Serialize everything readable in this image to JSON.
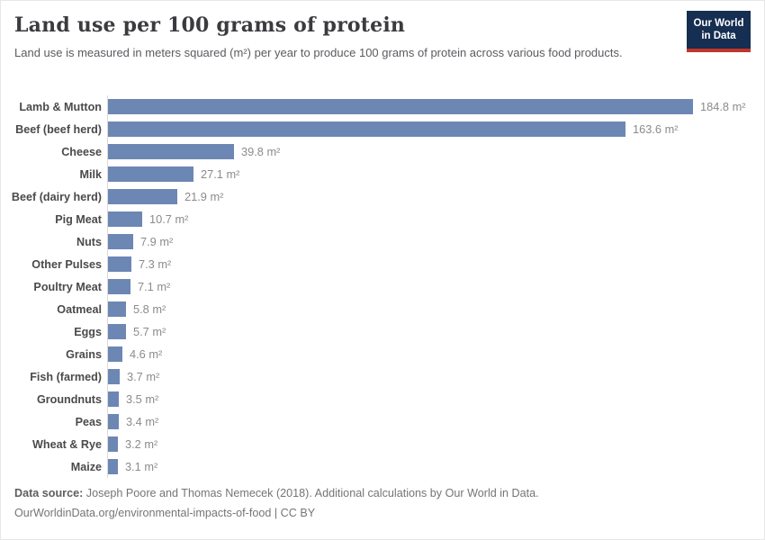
{
  "header": {
    "title": "Land use per 100 grams of protein",
    "subtitle": "Land use is measured in meters squared (m²) per year to produce 100 grams of protein across various food products."
  },
  "logo": {
    "line1": "Our World",
    "line2": "in Data",
    "background_color": "#152e52",
    "stripe_color": "#c0362a"
  },
  "chart_data": {
    "type": "bar",
    "orientation": "horizontal",
    "title": "Land use per 100 grams of protein",
    "xlabel": "",
    "ylabel": "",
    "unit": "m²",
    "xlim": [
      0,
      195
    ],
    "grid": false,
    "legend": "none",
    "bar_color": "#6d87b4",
    "axis_line_color": "#dadada",
    "categories": [
      "Lamb & Mutton",
      "Beef (beef herd)",
      "Cheese",
      "Milk",
      "Beef (dairy herd)",
      "Pig Meat",
      "Nuts",
      "Other Pulses",
      "Poultry Meat",
      "Oatmeal",
      "Eggs",
      "Grains",
      "Fish (farmed)",
      "Groundnuts",
      "Peas",
      "Wheat & Rye",
      "Maize"
    ],
    "values": [
      184.8,
      163.6,
      39.8,
      27.1,
      21.9,
      10.7,
      7.9,
      7.3,
      7.1,
      5.8,
      5.7,
      4.6,
      3.7,
      3.5,
      3.4,
      3.2,
      3.1
    ],
    "value_labels": [
      "184.8 m²",
      "163.6 m²",
      "39.8 m²",
      "27.1 m²",
      "21.9 m²",
      "10.7 m²",
      "7.9 m²",
      "7.3 m²",
      "7.1 m²",
      "5.8 m²",
      "5.7 m²",
      "4.6 m²",
      "3.7 m²",
      "3.5 m²",
      "3.4 m²",
      "3.2 m²",
      "3.1 m²"
    ]
  },
  "footer": {
    "source_label": "Data source:",
    "source_text": " Joseph Poore and Thomas Nemecek (2018). Additional calculations by Our World in Data.",
    "link": "OurWorldinData.org/environmental-impacts-of-food",
    "separator": " | ",
    "license": "CC BY"
  }
}
